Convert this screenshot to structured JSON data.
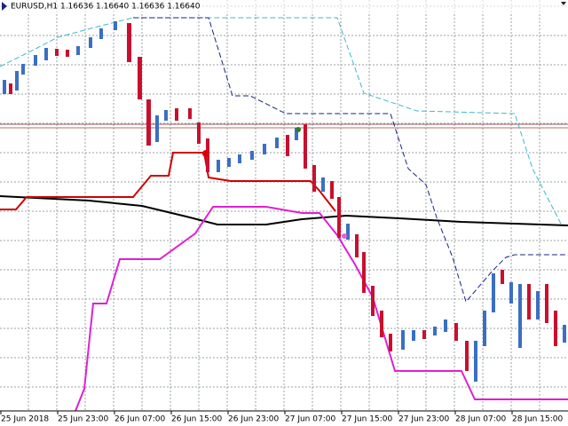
{
  "chart_data": {
    "type": "candlestick",
    "title": "EURUSD,H1  1.16636 1.16640 1.16636 1.16640",
    "categories": [
      "25 Jun 2018",
      "25 Jun 23:00",
      "26 Jun 07:00",
      "26 Jun 15:00",
      "26 Jun 23:00",
      "27 Jun 07:00",
      "27 Jun 15:00",
      "27 Jun 23:00",
      "28 Jun 07:00",
      "28 Jun 15:00"
    ],
    "grid": true
  }
}
